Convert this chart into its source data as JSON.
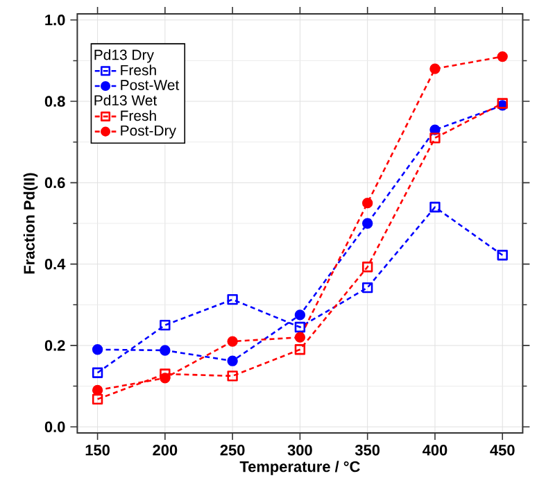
{
  "chart_data": {
    "type": "line",
    "xlabel": "Temperature / °C",
    "ylabel": "Fraction Pd(II)",
    "x": [
      150,
      200,
      250,
      300,
      350,
      400,
      450
    ],
    "series": [
      {
        "name": "Fresh",
        "color": "#0000ff",
        "marker": "square",
        "values": [
          0.133,
          0.25,
          0.313,
          0.245,
          0.342,
          0.54,
          0.422
        ]
      },
      {
        "name": "Post-Wet",
        "color": "#0000ff",
        "marker": "circle",
        "values": [
          0.19,
          0.188,
          0.162,
          0.275,
          0.5,
          0.73,
          0.79
        ]
      },
      {
        "name": "Fresh",
        "color": "#ff0000",
        "marker": "square",
        "values": [
          0.068,
          0.13,
          0.125,
          0.19,
          0.393,
          0.71,
          0.795
        ]
      },
      {
        "name": "Post-Dry",
        "color": "#ff0000",
        "marker": "circle",
        "values": [
          0.09,
          0.12,
          0.21,
          0.22,
          0.55,
          0.88,
          0.91
        ]
      }
    ],
    "annotations": [
      "Pd13 Dry",
      "Pd13 Wet"
    ],
    "xlim": [
      135,
      465
    ],
    "ylim": [
      -0.015,
      1.015
    ],
    "xticks": [
      150,
      200,
      250,
      300,
      350,
      400,
      450
    ],
    "yticks": [
      {
        "value": 0,
        "label": "0.0"
      },
      0.2,
      0.4,
      0.6,
      0.8,
      {
        "value": 1,
        "label": "1.0"
      }
    ],
    "grid": true,
    "legend": "top left",
    "line_style": "dashed"
  }
}
